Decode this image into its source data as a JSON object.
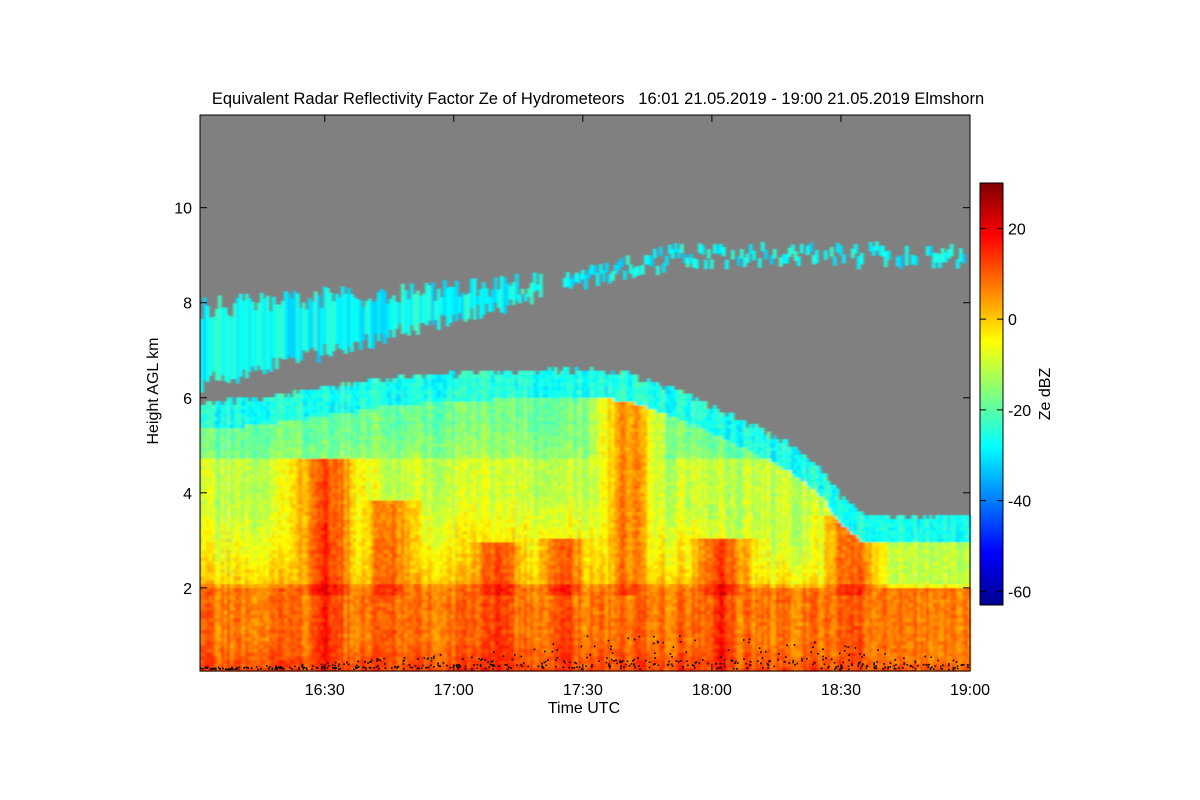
{
  "chart_data": {
    "type": "heatmap",
    "title": "Equivalent Radar Reflectivity Factor Ze of Hydrometeors   16:01 21.05.2019 - 19:00 21.05.2019 Elmshorn",
    "xlabel": "Time UTC",
    "ylabel": "Height AGL km",
    "colorbar_label": "Ze dBZ",
    "x_range_min": [
      961,
      1140
    ],
    "y_range_km": [
      0.25,
      11.95
    ],
    "x_ticks": [
      {
        "min": 990,
        "label": "16:30"
      },
      {
        "min": 1020,
        "label": "17:00"
      },
      {
        "min": 1050,
        "label": "17:30"
      },
      {
        "min": 1080,
        "label": "18:00"
      },
      {
        "min": 1110,
        "label": "18:30"
      },
      {
        "min": 1140,
        "label": "19:00"
      }
    ],
    "y_ticks": [
      {
        "km": 2,
        "label": "2"
      },
      {
        "km": 4,
        "label": "4"
      },
      {
        "km": 6,
        "label": "6"
      },
      {
        "km": 8,
        "label": "8"
      },
      {
        "km": 10,
        "label": "10"
      }
    ],
    "colorbar_range_dbz": [
      -63,
      30
    ],
    "colorbar_ticks": [
      {
        "dbz": 20,
        "label": "20"
      },
      {
        "dbz": 0,
        "label": "0"
      },
      {
        "dbz": -20,
        "label": "-20"
      },
      {
        "dbz": -40,
        "label": "-40"
      },
      {
        "dbz": -60,
        "label": "-60"
      }
    ],
    "no_data_color": "#808080",
    "bright_band_km": 1.95,
    "upper_cloud_layer": {
      "min": [
        961,
        1140
      ],
      "base_km": [
        6.3,
        8.9
      ],
      "top_km": [
        7.8,
        9.0
      ],
      "ze_dbz": -28
    },
    "main_precip_top_km": [
      {
        "min": 961,
        "km": 5.9
      },
      {
        "min": 975,
        "km": 6.0
      },
      {
        "min": 990,
        "km": 6.2
      },
      {
        "min": 1005,
        "km": 6.4
      },
      {
        "min": 1020,
        "km": 6.5
      },
      {
        "min": 1035,
        "km": 6.55
      },
      {
        "min": 1050,
        "km": 6.6
      },
      {
        "min": 1060,
        "km": 6.5
      },
      {
        "min": 1070,
        "km": 6.2
      },
      {
        "min": 1080,
        "km": 5.8
      },
      {
        "min": 1090,
        "km": 5.4
      },
      {
        "min": 1098,
        "km": 5.0
      },
      {
        "min": 1105,
        "km": 4.5
      },
      {
        "min": 1110,
        "km": 3.9
      },
      {
        "min": 1115,
        "km": 3.5
      },
      {
        "min": 1140,
        "km": 3.5
      }
    ],
    "convective_cores": [
      {
        "min": 990,
        "top_km": 4.7,
        "ze_dbz": 18
      },
      {
        "min": 1005,
        "top_km": 3.8,
        "ze_dbz": 14
      },
      {
        "min": 1030,
        "top_km": 2.9,
        "ze_dbz": 16
      },
      {
        "min": 1045,
        "top_km": 3.0,
        "ze_dbz": 16
      },
      {
        "min": 1060,
        "top_km": 6.3,
        "ze_dbz": 10
      },
      {
        "min": 1082,
        "top_km": 3.0,
        "ze_dbz": 18
      },
      {
        "min": 1112,
        "top_km": 3.5,
        "ze_dbz": 15
      }
    ],
    "cloud_base_marker_km": [
      0.3,
      1.0
    ]
  }
}
